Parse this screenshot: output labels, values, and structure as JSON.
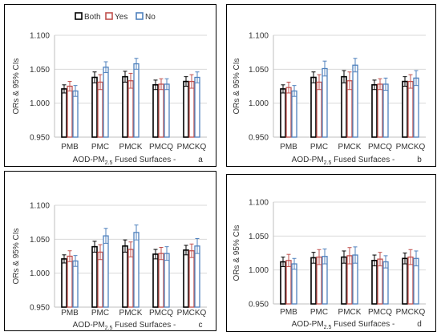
{
  "chart_data": [
    {
      "type": "bar",
      "panel_letter": "a",
      "xlabel": {
        "prefix": "AOD-PM",
        "sub": "2.5",
        "suffix": " Fused Surfaces -"
      },
      "ylabel": "ORs & 95% CIs",
      "ylim": [
        0.95,
        1.1
      ],
      "yticks": [
        "0.950",
        "1.000",
        "1.050",
        "1.100"
      ],
      "legend_position": "top",
      "categories": [
        "PMB",
        "PMC",
        "PMCK",
        "PMCQ",
        "PMCKQ"
      ],
      "series": [
        {
          "name": "Both",
          "color": "#000000",
          "values": [
            1.021,
            1.038,
            1.039,
            1.027,
            1.032
          ],
          "ci_low": [
            1.015,
            1.03,
            1.031,
            1.02,
            1.025
          ],
          "ci_high": [
            1.027,
            1.046,
            1.047,
            1.034,
            1.039
          ]
        },
        {
          "name": "Yes",
          "color": "#c0504d",
          "values": [
            1.025,
            1.031,
            1.033,
            1.028,
            1.032
          ],
          "ci_low": [
            1.018,
            1.02,
            1.022,
            1.02,
            1.022
          ],
          "ci_high": [
            1.032,
            1.042,
            1.044,
            1.036,
            1.042
          ]
        },
        {
          "name": "No",
          "color": "#4f81bd",
          "values": [
            1.018,
            1.053,
            1.058,
            1.028,
            1.038
          ],
          "ci_low": [
            1.01,
            1.045,
            1.05,
            1.02,
            1.03
          ],
          "ci_high": [
            1.026,
            1.061,
            1.066,
            1.036,
            1.046
          ]
        }
      ]
    },
    {
      "type": "bar",
      "panel_letter": "b",
      "xlabel": {
        "prefix": "AOD-PM",
        "sub": "2.5",
        "suffix": " Fused Surfaces -"
      },
      "ylabel": "ORs & 95% CIs",
      "ylim": [
        0.95,
        1.1
      ],
      "yticks": [
        "0.950",
        "1.000",
        "1.050",
        "1.100"
      ],
      "legend_position": "none",
      "categories": [
        "PMB",
        "PMC",
        "PMCK",
        "PMCQ",
        "PMCKQ"
      ],
      "series": [
        {
          "name": "Both",
          "color": "#000000",
          "values": [
            1.021,
            1.038,
            1.039,
            1.027,
            1.032
          ],
          "ci_low": [
            1.015,
            1.03,
            1.03,
            1.02,
            1.025
          ],
          "ci_high": [
            1.027,
            1.046,
            1.048,
            1.034,
            1.039
          ]
        },
        {
          "name": "Yes",
          "color": "#c0504d",
          "values": [
            1.023,
            1.031,
            1.033,
            1.028,
            1.032
          ],
          "ci_low": [
            1.015,
            1.02,
            1.02,
            1.02,
            1.022
          ],
          "ci_high": [
            1.031,
            1.042,
            1.046,
            1.036,
            1.042
          ]
        },
        {
          "name": "No",
          "color": "#4f81bd",
          "values": [
            1.018,
            1.051,
            1.056,
            1.028,
            1.037
          ],
          "ci_low": [
            1.01,
            1.04,
            1.046,
            1.019,
            1.026
          ],
          "ci_high": [
            1.026,
            1.062,
            1.066,
            1.037,
            1.048
          ]
        }
      ]
    },
    {
      "type": "bar",
      "panel_letter": "c",
      "xlabel": {
        "prefix": "AOD-PM",
        "sub": "2.5",
        "suffix": " Fused Surfaces -"
      },
      "ylabel": "ORs & 95% CIs",
      "ylim": [
        0.95,
        1.1
      ],
      "yticks": [
        "0.950",
        "1.000",
        "1.050",
        "1.100"
      ],
      "legend_position": "none",
      "categories": [
        "PMB",
        "PMC",
        "PMCK",
        "PMCQ",
        "PMCKQ"
      ],
      "series": [
        {
          "name": "Both",
          "color": "#000000",
          "values": [
            1.021,
            1.039,
            1.04,
            1.028,
            1.034
          ],
          "ci_low": [
            1.015,
            1.031,
            1.031,
            1.021,
            1.027
          ],
          "ci_high": [
            1.027,
            1.047,
            1.049,
            1.035,
            1.041
          ]
        },
        {
          "name": "Yes",
          "color": "#c0504d",
          "values": [
            1.025,
            1.031,
            1.035,
            1.029,
            1.033
          ],
          "ci_low": [
            1.017,
            1.02,
            1.024,
            1.02,
            1.023
          ],
          "ci_high": [
            1.033,
            1.042,
            1.046,
            1.038,
            1.043
          ]
        },
        {
          "name": "No",
          "color": "#4f81bd",
          "values": [
            1.018,
            1.055,
            1.06,
            1.029,
            1.04
          ],
          "ci_low": [
            1.01,
            1.044,
            1.049,
            1.019,
            1.029
          ],
          "ci_high": [
            1.026,
            1.066,
            1.071,
            1.039,
            1.051
          ]
        }
      ]
    },
    {
      "type": "bar",
      "panel_letter": "d",
      "xlabel": {
        "prefix": "AOD-PM",
        "sub": "2.5",
        "suffix": " Fused Surfaces -"
      },
      "ylabel": "ORs & 95% CIs",
      "ylim": [
        0.95,
        1.1
      ],
      "yticks": [
        "0.950",
        "1.000",
        "1.050",
        "1.100"
      ],
      "legend_position": "none",
      "categories": [
        "PMB",
        "PMC",
        "PMCK",
        "PMCQ",
        "PMCKQ"
      ],
      "series": [
        {
          "name": "Both",
          "color": "#000000",
          "values": [
            1.012,
            1.018,
            1.019,
            1.014,
            1.017
          ],
          "ci_low": [
            1.005,
            1.01,
            1.01,
            1.006,
            1.009
          ],
          "ci_high": [
            1.019,
            1.026,
            1.028,
            1.022,
            1.025
          ]
        },
        {
          "name": "Yes",
          "color": "#c0504d",
          "values": [
            1.014,
            1.019,
            1.021,
            1.016,
            1.019
          ],
          "ci_low": [
            1.005,
            1.008,
            1.009,
            1.006,
            1.008
          ],
          "ci_high": [
            1.023,
            1.03,
            1.033,
            1.026,
            1.03
          ]
        },
        {
          "name": "No",
          "color": "#4f81bd",
          "values": [
            1.009,
            1.02,
            1.022,
            1.012,
            1.017
          ],
          "ci_low": [
            1.001,
            1.009,
            1.01,
            1.003,
            1.006
          ],
          "ci_high": [
            1.017,
            1.031,
            1.034,
            1.021,
            1.028
          ]
        }
      ]
    }
  ]
}
